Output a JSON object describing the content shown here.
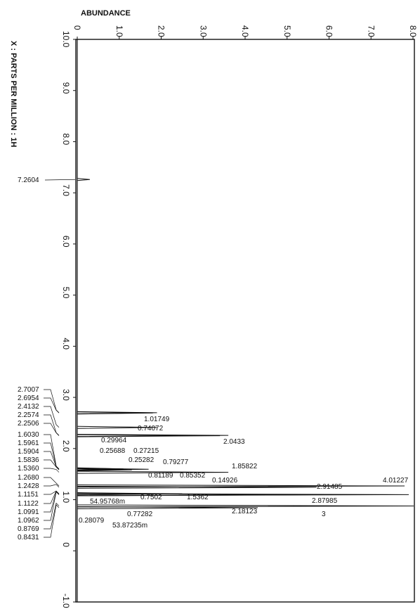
{
  "chart_data": {
    "type": "line",
    "xlabel": "X : PARTS PER MILLION : 1H",
    "ylabel": "ABUNDANCE",
    "xlim": [
      -1.0,
      10.0
    ],
    "ylim": [
      0,
      8.0
    ],
    "x_ticks": [
      {
        "value": 10.0,
        "label": "10.0"
      },
      {
        "value": 9.0,
        "label": "9.0"
      },
      {
        "value": 8.0,
        "label": "8.0"
      },
      {
        "value": 7.0,
        "label": "7.0"
      },
      {
        "value": 6.0,
        "label": "6.0"
      },
      {
        "value": 5.0,
        "label": "5.0"
      },
      {
        "value": 4.0,
        "label": "4.0"
      },
      {
        "value": 3.0,
        "label": "3.0"
      },
      {
        "value": 2.0,
        "label": "2.0"
      },
      {
        "value": 1.0,
        "label": "1.0"
      },
      {
        "value": 0,
        "label": "0"
      },
      {
        "value": -1.0,
        "label": "-1.0"
      }
    ],
    "y_ticks": [
      {
        "value": 0,
        "label": "0"
      },
      {
        "value": 1.0,
        "label": "1.0"
      },
      {
        "value": 2.0,
        "label": "2.0"
      },
      {
        "value": 3.0,
        "label": "3.0"
      },
      {
        "value": 4.0,
        "label": "4.0"
      },
      {
        "value": 5.0,
        "label": "5.0"
      },
      {
        "value": 6.0,
        "label": "6.0"
      },
      {
        "value": 7.0,
        "label": "7.0"
      },
      {
        "value": 8.0,
        "label": "8.0"
      }
    ],
    "peaks": [
      {
        "ppm": 7.2604,
        "abundance": 0.3
      },
      {
        "ppm": 2.7007,
        "abundance": 1.9
      },
      {
        "ppm": 2.6954,
        "abundance": 1.8
      },
      {
        "ppm": 2.4132,
        "abundance": 1.9
      },
      {
        "ppm": 2.2574,
        "abundance": 3.6
      },
      {
        "ppm": 2.2506,
        "abundance": 3.4
      },
      {
        "ppm": 1.603,
        "abundance": 1.1
      },
      {
        "ppm": 1.5961,
        "abundance": 1.7
      },
      {
        "ppm": 1.5904,
        "abundance": 1.2
      },
      {
        "ppm": 1.5836,
        "abundance": 1.3
      },
      {
        "ppm": 1.536,
        "abundance": 3.6
      },
      {
        "ppm": 1.268,
        "abundance": 7.8
      },
      {
        "ppm": 1.2428,
        "abundance": 5.7
      },
      {
        "ppm": 1.1151,
        "abundance": 2.5
      },
      {
        "ppm": 1.1122,
        "abundance": 1.9
      },
      {
        "ppm": 1.0991,
        "abundance": 7.9
      },
      {
        "ppm": 1.0962,
        "abundance": 5.6
      },
      {
        "ppm": 0.8769,
        "abundance": 8.1
      },
      {
        "ppm": 0.8431,
        "abundance": 4.3
      }
    ],
    "integrals": [
      {
        "label": "1.01749",
        "ppm": 2.65
      },
      {
        "label": "0.74072",
        "ppm": 2.5
      },
      {
        "label": "0.29964",
        "ppm": 2.28
      },
      {
        "label": "2.0433",
        "ppm": 2.22
      },
      {
        "label": "0.25688",
        "ppm": 2.1
      },
      {
        "label": "0.27215",
        "ppm": 2.1
      },
      {
        "label": "0.25282",
        "ppm": 1.92
      },
      {
        "label": "0.79277",
        "ppm": 1.85
      },
      {
        "label": "1.85822",
        "ppm": 1.77
      },
      {
        "label": "0.81189",
        "ppm": 1.62
      },
      {
        "label": "0.85352",
        "ppm": 1.62
      },
      {
        "label": "0.14926",
        "ppm": 1.53
      },
      {
        "label": "4.01227",
        "ppm": 1.53
      },
      {
        "label": "2.91485",
        "ppm": 1.39
      },
      {
        "label": "54.95768m",
        "ppm": 1.08
      },
      {
        "label": "0.7502",
        "ppm": 1.13
      },
      {
        "label": "1.5362",
        "ppm": 1.13
      },
      {
        "label": "2.87985",
        "ppm": 1.08
      },
      {
        "label": "0.28079",
        "ppm": 0.67
      },
      {
        "label": "0.77282",
        "ppm": 0.8
      },
      {
        "label": "53.87235m",
        "ppm": 0.59
      },
      {
        "label": "2.18123",
        "ppm": 0.85
      },
      {
        "label": "3",
        "ppm": 0.82
      }
    ]
  }
}
